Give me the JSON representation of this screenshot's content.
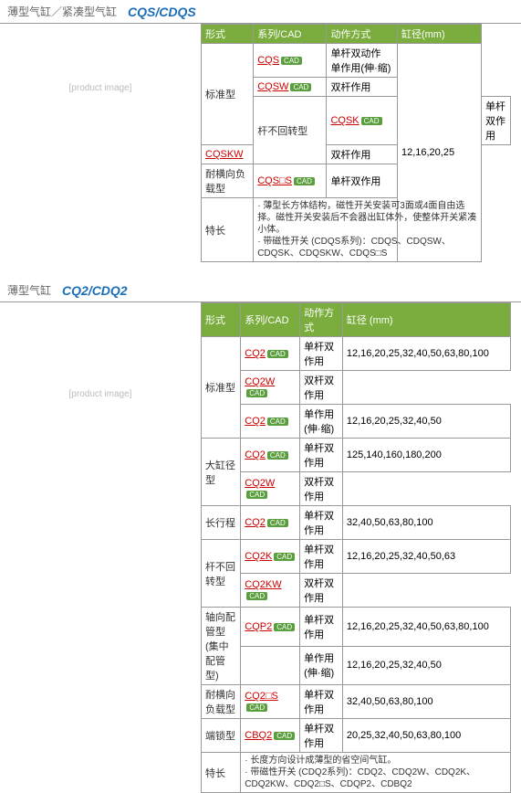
{
  "s1": {
    "cn_title": "薄型气缸／紧凑型气缸",
    "en_title": "CQS/CDQS",
    "headers": [
      "形式",
      "系列/CAD",
      "动作方式",
      "缸径(mm)"
    ],
    "rows": [
      {
        "cat": "标准型",
        "link": "CQS",
        "cad": true,
        "act": "单杆双动作\n单作用(伸·缩)",
        "bore": "12,16,20,25",
        "rs": 3,
        "bs": 7
      },
      {
        "link": "CQSW",
        "cad": true,
        "act": "双杆作用"
      },
      {
        "cat": "杆不回转型",
        "link": "CQSK",
        "cad": true,
        "act": "单杆双作用",
        "rs": 2
      },
      {
        "link": "CQSKW",
        "act": "双杆作用"
      },
      {
        "cat": "耐横向负载型",
        "link": "CQS□S",
        "cad": true,
        "act": "单杆双作用"
      }
    ],
    "note_label": "特长",
    "note": "· 薄型长方体结构，磁性开关安装可3面或4面自由选择。磁性开关安装后不会器出缸体外，使整体开关紧凑小体。\n· 带磁性开关 (CDQS系列)：CDQS、CDQSW、CDQSK、CDQSKW、CDQS□S"
  },
  "s2": {
    "cn_title": "薄型气缸",
    "en_title": "CQ2/CDQ2",
    "headers": [
      "形式",
      "系列/CAD",
      "动作方式",
      "缸径 (mm)"
    ],
    "rows": [
      {
        "cat": "标准型",
        "link": "CQ2",
        "cad": true,
        "act": "单杆双作用",
        "bore": "12,16,20,25,32,40,50,63,80,100",
        "rs": 3
      },
      {
        "link": "CQ2W",
        "cad": true,
        "act": "双杆双作用"
      },
      {
        "link": "CQ2",
        "cad": true,
        "act": "单作用(伸·缩)",
        "bore": "12,16,20,25,32,40,50"
      },
      {
        "cat": "大缸径型",
        "link": "CQ2",
        "cad": true,
        "act": "单杆双作用",
        "bore": "125,140,160,180,200",
        "rs": 2
      },
      {
        "link": "CQ2W",
        "cad": true,
        "act": "双杆双作用"
      },
      {
        "cat": "长行程",
        "link": "CQ2",
        "cad": true,
        "act": "单杆双作用",
        "bore": "32,40,50,63,80,100"
      },
      {
        "cat": "杆不回转型",
        "link": "CQ2K",
        "cad": true,
        "act": "单杆双作用",
        "bore": "12,16,20,25,32,40,50,63",
        "rs": 2
      },
      {
        "link": "CQ2KW",
        "cad": true,
        "act": "双杆双作用"
      },
      {
        "cat": "轴向配管型\n(集中配管型)",
        "link": "CQP2",
        "cad": true,
        "act": "单杆双作用",
        "bore": "12,16,20,25,32,40,50,63,80,100",
        "rs": 2
      },
      {
        "act": "单作用(伸·缩)",
        "bore": "12,16,20,25,32,40,50"
      },
      {
        "cat": "耐横向负载型",
        "link": "CQ2□S",
        "cad": true,
        "act": "单杆双作用",
        "bore": "32,40,50,63,80,100"
      },
      {
        "cat": "端锁型",
        "link": "CBQ2",
        "cad": true,
        "act": "单杆双作用",
        "bore": "20,25,32,40,50,63,80,100"
      }
    ],
    "note_label": "特长",
    "note": "· 长度方向设计成薄型的省空间气缸。\n· 带磁性开关 (CDQ2系列)：CDQ2、CDQ2W、CDQ2K、CDQ2KW、CDQ2□S、CDQP2、CDBQ2"
  },
  "cad_text": "CAD",
  "img_ph": "[product image]"
}
